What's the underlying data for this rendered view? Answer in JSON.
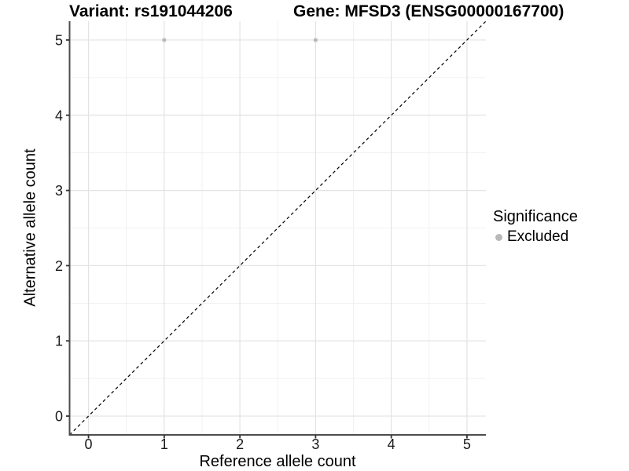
{
  "chart_data": {
    "type": "scatter",
    "titles": {
      "left": "Variant: rs191044206",
      "right": "Gene: MFSD3 (ENSG00000167700)"
    },
    "xlabel": "Reference allele count",
    "ylabel": "Alternative allele count",
    "xlim": [
      -0.25,
      5.25
    ],
    "ylim": [
      -0.25,
      5.25
    ],
    "xticks": [
      0,
      1,
      2,
      3,
      4,
      5
    ],
    "yticks": [
      0,
      1,
      2,
      3,
      4,
      5
    ],
    "xminor": [
      0.5,
      1.5,
      2.5,
      3.5,
      4.5
    ],
    "yminor": [
      0.5,
      1.5,
      2.5,
      3.5,
      4.5
    ],
    "grid": "on",
    "legend": {
      "title": "Significance",
      "position": "right",
      "items": [
        {
          "label": "Excluded",
          "color": "#b9b9b9"
        }
      ]
    },
    "series": [
      {
        "name": "Excluded",
        "color": "#b9b9b9",
        "points": [
          {
            "x": 1,
            "y": 5
          },
          {
            "x": 3,
            "y": 5
          }
        ]
      }
    ],
    "reference_line": {
      "type": "identity",
      "slope": 1,
      "intercept": 0,
      "style": "dashed",
      "color": "#000000"
    },
    "colors": {
      "background": "#ffffff",
      "major_grid": "#e3e3e3",
      "minor_grid": "#f1f1f1",
      "axis_line": "#4d4d4d",
      "tick": "#333333",
      "tick_label": "#1a1a1a",
      "point": "#b9b9b9"
    }
  }
}
